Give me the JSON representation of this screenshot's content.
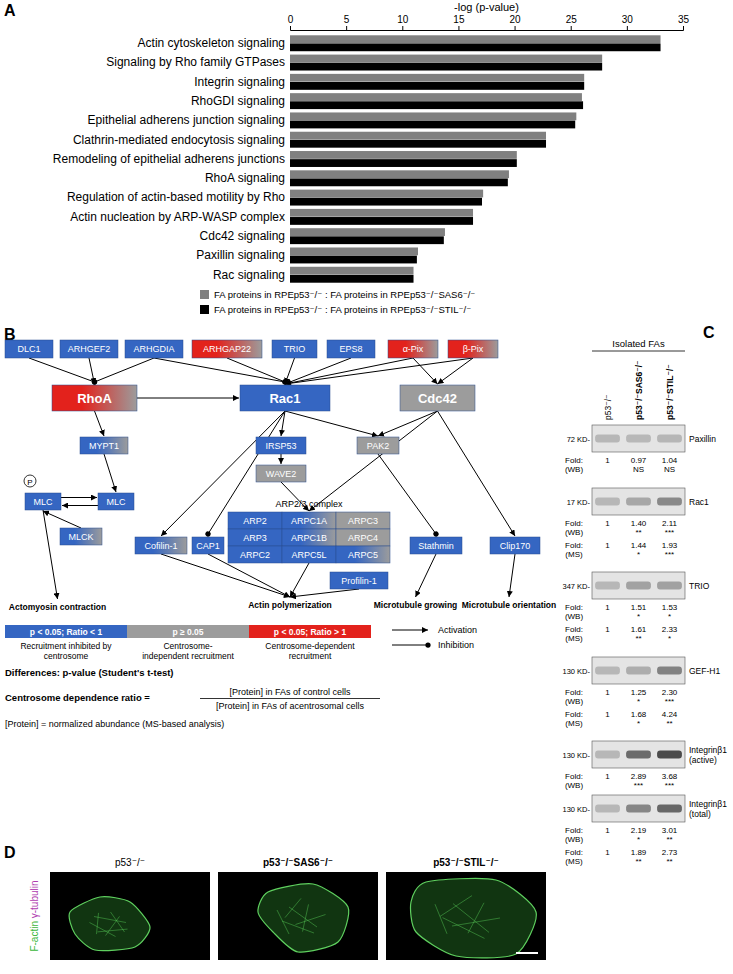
{
  "panel_labels": [
    "A",
    "B",
    "C",
    "D"
  ],
  "chart_data": {
    "type": "bar",
    "orientation": "horizontal",
    "x_label": "-log (p-value)",
    "xlim": [
      0,
      35
    ],
    "xticks": [
      0,
      5,
      10,
      15,
      20,
      25,
      30,
      35
    ],
    "legend": "bottom",
    "categories": [
      "Actin cytoskeleton signaling",
      "Signaling by Rho family GTPases",
      "Integrin signaling",
      "RhoGDI signaling",
      "Epithelial adherens junction signaling",
      "Clathrin-mediated endocytosis signaling",
      "Remodeling of epithelial adherens junctions",
      "RhoA signaling",
      "Regulation of actin-based motility by Rho",
      "Actin nucleation by ARP-WASP complex",
      "Cdc42 signaling",
      "Paxillin signaling",
      "Rac signaling"
    ],
    "series": [
      {
        "name": "FA proteins in RPEp53⁻/⁻ : FA proteins in RPEp53⁻/⁻SAS6⁻/⁻",
        "color": "#808080",
        "values": [
          33.0,
          27.8,
          26.2,
          26.0,
          25.5,
          22.8,
          20.2,
          19.5,
          17.2,
          16.3,
          13.8,
          11.4,
          11.0
        ]
      },
      {
        "name": "FA proteins in RPEp53⁻/⁻ : FA proteins in RPEp53⁻/⁻STIL⁻/⁻",
        "color": "#000000",
        "values": [
          33.0,
          27.8,
          26.2,
          26.1,
          25.4,
          22.8,
          20.2,
          19.4,
          17.1,
          16.3,
          13.7,
          11.3,
          11.0
        ]
      }
    ]
  },
  "diagram": {
    "nodes": [
      {
        "label": "DLC1",
        "color": "blue"
      },
      {
        "label": "ARHGEF2",
        "color": "blue"
      },
      {
        "label": "ARHGDIA",
        "color": "blue"
      },
      {
        "label": "ARHGAP22",
        "color": "red-gray"
      },
      {
        "label": "TRIO",
        "color": "blue"
      },
      {
        "label": "EPS8",
        "color": "blue"
      },
      {
        "label": "α-Pix",
        "color": "red-gray"
      },
      {
        "label": "β-Pix",
        "color": "red-gray"
      },
      {
        "label": "RhoA",
        "color": "red-gray"
      },
      {
        "label": "Rac1",
        "color": "blue"
      },
      {
        "label": "Cdc42",
        "color": "gray"
      },
      {
        "label": "MYPT1",
        "color": "blue-gray"
      },
      {
        "label": "IRSP53",
        "color": "blue"
      },
      {
        "label": "WAVE2",
        "color": "gray"
      },
      {
        "label": "PAK2",
        "color": "gray"
      },
      {
        "label": "MLC",
        "color": "blue"
      },
      {
        "label": "MLC",
        "color": "blue"
      },
      {
        "label": "MLCK",
        "color": "blue-gray"
      },
      {
        "label": "Cofilin-1",
        "color": "blue-gray"
      },
      {
        "label": "CAP1",
        "color": "blue"
      },
      {
        "label": "Stathmin",
        "color": "blue"
      },
      {
        "label": "Clip170",
        "color": "blue"
      },
      {
        "label": "Profilin-1",
        "color": "blue"
      }
    ],
    "complex": {
      "label": "ARP2/3 complex",
      "members": [
        {
          "label": "ARP2",
          "color": "blue"
        },
        {
          "label": "ARPC1A",
          "color": "blue-gray"
        },
        {
          "label": "ARPC3",
          "color": "gray"
        },
        {
          "label": "ARP3",
          "color": "blue"
        },
        {
          "label": "ARPC1B",
          "color": "blue-gray"
        },
        {
          "label": "ARPC4",
          "color": "gray"
        },
        {
          "label": "ARPC2",
          "color": "blue"
        },
        {
          "label": "ARPC5L",
          "color": "blue"
        },
        {
          "label": "ARPC5",
          "color": "blue-gray"
        }
      ]
    },
    "outputs": [
      "Actomyosin contraction",
      "Actin polymerization",
      "Microtubule growing",
      "Microtubule orientation"
    ],
    "phospho": "P",
    "legend": {
      "colors": [
        {
          "color": "blue",
          "label": "p < 0.05; Ratio < 1",
          "meaning": [
            "Recruitment inhibited by",
            "centrosome"
          ]
        },
        {
          "color": "gray",
          "label": "p ≥ 0.05",
          "meaning": [
            "Centrosome-",
            "independent recruitment"
          ]
        },
        {
          "color": "red",
          "label": "p < 0.05; Ratio > 1",
          "meaning": [
            "Centrosome-dependent",
            "recruitment"
          ]
        }
      ],
      "arrows": [
        {
          "label": "Activation",
          "type": "activation"
        },
        {
          "label": "Inhibition",
          "type": "inhibition"
        }
      ]
    },
    "differences": "Differences: p-value (Student's t-test)",
    "ratio": {
      "label": "Centrosome dependence ratio =",
      "numerator": "[Protein] in FAs of control cells",
      "denominator": "[Protein] in FAs of acentrosomal cells"
    },
    "abundance": "[Protein] = normalized abundance (MS-based analysis)"
  },
  "blots": {
    "header": "Isolated FAs",
    "columns": [
      "p53⁻/⁻",
      "p53⁻/⁻SAS6⁻/⁻",
      "p53⁻/⁻STIL⁻/⁻"
    ],
    "fold_label": "Fold:",
    "rows": [
      {
        "protein": [
          "Paxillin"
        ],
        "size": "72 KD-",
        "measurements": [
          {
            "method": "(WB)",
            "values": [
              1,
              0.97,
              1.04
            ],
            "value_labels": [
              "1",
              "0.97",
              "1.04"
            ],
            "significance": [
              null,
              "NS",
              "NS"
            ]
          }
        ]
      },
      {
        "protein": [
          "Rac1"
        ],
        "size": "17 KD-",
        "measurements": [
          {
            "method": "(WB)",
            "values": [
              1,
              1.4,
              2.11
            ],
            "value_labels": [
              "1",
              "1.40",
              "2.11"
            ],
            "significance": [
              null,
              "**",
              "***"
            ]
          },
          {
            "method": "(MS)",
            "values": [
              1,
              1.44,
              1.93
            ],
            "value_labels": [
              "1",
              "1.44",
              "1.93"
            ],
            "significance": [
              null,
              "*",
              "***"
            ]
          }
        ]
      },
      {
        "protein": [
          "TRIO"
        ],
        "size": "347 KD-",
        "measurements": [
          {
            "method": "(WB)",
            "values": [
              1,
              1.51,
              1.53
            ],
            "value_labels": [
              "1",
              "1.51",
              "1.53"
            ],
            "significance": [
              null,
              "*",
              "*"
            ]
          },
          {
            "method": "(MS)",
            "values": [
              1,
              1.61,
              2.33
            ],
            "value_labels": [
              "1",
              "1.61",
              "2.33"
            ],
            "significance": [
              null,
              "**",
              "*"
            ]
          }
        ]
      },
      {
        "protein": [
          "GEF-H1"
        ],
        "size": "130 KD-",
        "measurements": [
          {
            "method": "(WB)",
            "values": [
              1,
              1.25,
              2.3
            ],
            "value_labels": [
              "1",
              "1.25",
              "2.30"
            ],
            "significance": [
              null,
              "*",
              "***"
            ]
          },
          {
            "method": "(MS)",
            "values": [
              1,
              1.68,
              4.24
            ],
            "value_labels": [
              "1",
              "1.68",
              "4.24"
            ],
            "significance": [
              null,
              "*",
              "**"
            ]
          }
        ]
      },
      {
        "protein": [
          "Integrinβ1",
          "(active)"
        ],
        "size": "130 KD-",
        "measurements": [
          {
            "method": "(WB)",
            "values": [
              1,
              2.89,
              3.68
            ],
            "value_labels": [
              "1",
              "2.89",
              "3.68"
            ],
            "significance": [
              null,
              "***",
              "***"
            ]
          }
        ]
      },
      {
        "protein": [
          "Integrinβ1",
          "(total)"
        ],
        "size": "130 KD-",
        "measurements": [
          {
            "method": "(WB)",
            "values": [
              1,
              2.19,
              3.01
            ],
            "value_labels": [
              "1",
              "2.19",
              "3.01"
            ],
            "significance": [
              null,
              "*",
              "**"
            ]
          },
          {
            "method": "(MS)",
            "values": [
              1,
              1.89,
              2.73
            ],
            "value_labels": [
              "1",
              "1.89",
              "2.73"
            ],
            "significance": [
              null,
              "**",
              "**"
            ]
          }
        ]
      }
    ]
  },
  "images": {
    "titles": [
      "p53⁻/⁻",
      "p53⁻/⁻SAS6⁻/⁻",
      "p53⁻/⁻STIL⁻/⁻"
    ],
    "channels": [
      {
        "label": "F-actin",
        "color": "#3cb83c"
      },
      {
        "label": "γ-tubulin",
        "color": "#b03cb0"
      }
    ]
  }
}
